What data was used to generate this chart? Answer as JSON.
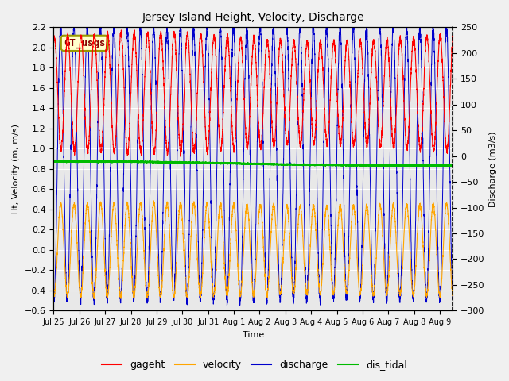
{
  "title": "Jersey Island Height, Velocity, Discharge",
  "xlabel": "Time",
  "ylabel_left": "Ht, Velocity (m, m/s)",
  "ylabel_right": "Discharge (m3/s)",
  "ylim_left": [
    -0.6,
    2.2
  ],
  "ylim_right": [
    -300,
    250
  ],
  "yticks_left": [
    -0.6,
    -0.4,
    -0.2,
    0.0,
    0.2,
    0.4,
    0.6,
    0.8,
    1.0,
    1.2,
    1.4,
    1.6,
    1.8,
    2.0,
    2.2
  ],
  "yticks_right": [
    -300,
    -250,
    -200,
    -150,
    -100,
    -50,
    0,
    50,
    100,
    150,
    200,
    250
  ],
  "colors": {
    "gageht": "#ff0000",
    "velocity": "#ffa500",
    "discharge": "#0000cc",
    "dis_tidal": "#00bb00"
  },
  "annotation_text": "GT_usgs",
  "annotation_color": "#880000",
  "annotation_bg": "#ffffcc",
  "annotation_edge": "#999900",
  "fig_bg": "#f0f0f0",
  "plot_bg": "#e8e8e8",
  "x_tick_labels": [
    "Jul 25",
    "Jul 26",
    "Jul 27",
    "Jul 28",
    "Jul 29",
    "Jul 30",
    "Jul 31",
    "Aug 1",
    "Aug 2",
    "Aug 3",
    "Aug 4",
    "Aug 5",
    "Aug 6",
    "Aug 7",
    "Aug 8",
    "Aug 9"
  ],
  "x_tick_positions": [
    0,
    1,
    2,
    3,
    4,
    5,
    6,
    7,
    8,
    9,
    10,
    11,
    12,
    13,
    14,
    15
  ],
  "xlim": [
    0,
    15.5
  ],
  "tidal_period_days": 0.5167,
  "n_points": 5000,
  "x_end_days": 15.5
}
